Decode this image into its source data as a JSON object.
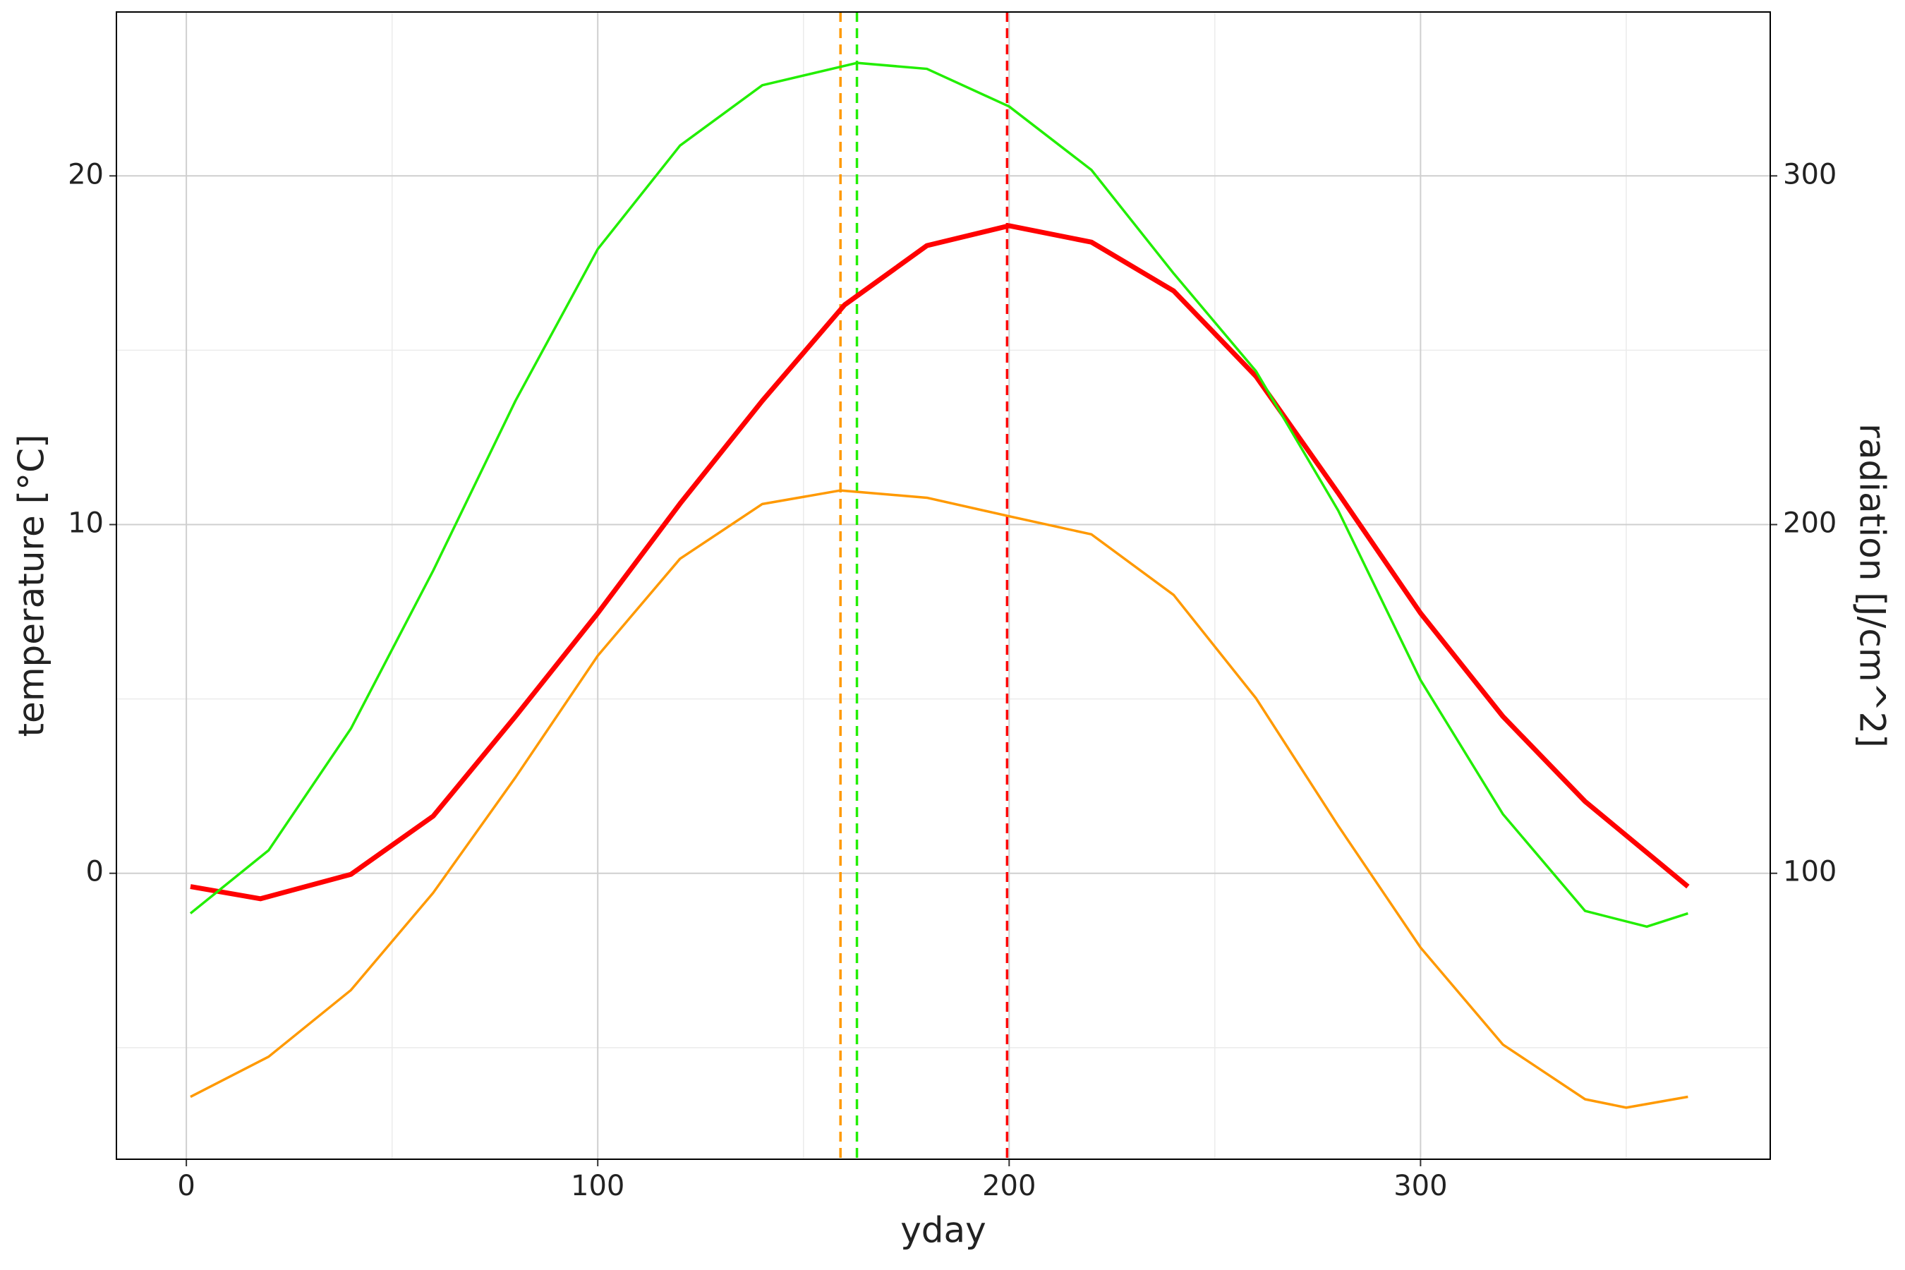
{
  "chart_data": {
    "type": "line",
    "x_label": "yday",
    "y_label": "temperature [°C]",
    "y2_label": "radiation [J/cm^2]",
    "xlim": [
      -17,
      385
    ],
    "xticks": [
      0,
      100,
      200,
      300
    ],
    "ylim": [
      -8.2,
      24.7
    ],
    "yticks": [
      0,
      10,
      20
    ],
    "y2lim": [
      18,
      347
    ],
    "y2ticks": [
      100,
      200,
      300
    ],
    "grid": true,
    "series": [
      {
        "color": "#ff0000",
        "x": [
          1,
          18,
          40,
          60,
          80,
          100,
          120,
          140,
          160,
          180,
          200,
          220,
          240,
          260,
          280,
          300,
          320,
          340,
          365
        ],
        "values": [
          -0.38,
          -0.73,
          -0.03,
          1.64,
          4.5,
          7.46,
          10.6,
          13.55,
          16.3,
          18.0,
          18.57,
          18.1,
          16.7,
          14.25,
          10.9,
          7.46,
          4.5,
          2.06,
          -0.38
        ]
      },
      {
        "color": "#22ee00",
        "axis": "y2",
        "x": [
          1,
          20,
          40,
          60,
          80,
          100,
          120,
          140,
          163,
          180,
          200,
          220,
          240,
          260,
          280,
          300,
          320,
          340,
          355,
          365
        ],
        "values": [
          88.5,
          106.6,
          141.5,
          186.8,
          235.5,
          279,
          308.7,
          326,
          332.4,
          330.7,
          319.9,
          301.7,
          272,
          244,
          204,
          155.4,
          117,
          89.2,
          84.7,
          88.5
        ]
      },
      {
        "color": "#ff9900",
        "axis": "y2",
        "x": [
          1,
          20,
          40,
          60,
          80,
          100,
          120,
          140,
          159,
          180,
          200,
          220,
          240,
          260,
          280,
          300,
          320,
          340,
          350,
          365
        ],
        "values": [
          35.9,
          47.4,
          66.5,
          94.4,
          127.5,
          162.4,
          190.2,
          205.9,
          209.8,
          207.7,
          202.4,
          197.2,
          179.8,
          150.2,
          113.6,
          78.7,
          50.9,
          35.2,
          32.8,
          35.9
        ]
      }
    ],
    "vlines": [
      {
        "x": 159,
        "color": "#ff9900"
      },
      {
        "x": 163,
        "color": "#22ee00"
      },
      {
        "x": 199.5,
        "color": "#ff0000"
      }
    ]
  }
}
